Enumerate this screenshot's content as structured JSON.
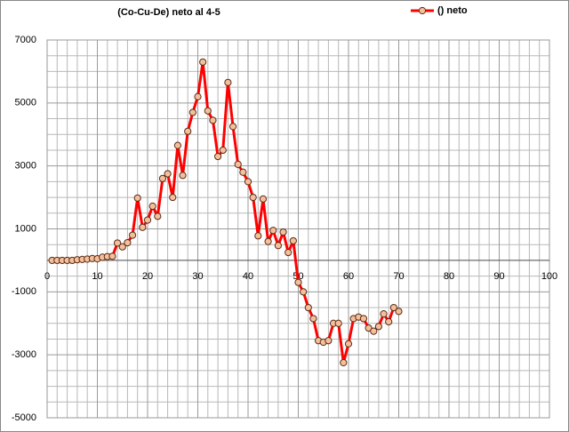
{
  "chart_data": {
    "type": "line",
    "title": "(Co-Cu-De) neto al 4-5",
    "x": [
      1,
      2,
      3,
      4,
      5,
      6,
      7,
      8,
      9,
      10,
      11,
      12,
      13,
      14,
      15,
      16,
      17,
      18,
      19,
      20,
      21,
      22,
      23,
      24,
      25,
      26,
      27,
      28,
      29,
      30,
      31,
      32,
      33,
      34,
      35,
      36,
      37,
      38,
      39,
      40,
      41,
      42,
      43,
      44,
      45,
      46,
      47,
      48,
      49,
      50,
      51,
      52,
      53,
      54,
      55,
      56,
      57,
      58,
      59,
      60,
      61,
      62,
      63,
      64,
      65,
      66,
      67,
      68,
      69,
      70
    ],
    "series": [
      {
        "name": "() neto",
        "color": "#ff0000",
        "marker_color": "#f4c09a",
        "values": [
          0,
          0,
          0,
          0,
          0,
          20,
          30,
          40,
          60,
          50,
          100,
          120,
          130,
          550,
          430,
          560,
          800,
          1980,
          1050,
          1280,
          1720,
          1400,
          2600,
          2750,
          2000,
          3650,
          2700,
          4100,
          4700,
          5200,
          6300,
          4750,
          4450,
          3300,
          3500,
          5650,
          4250,
          3050,
          2800,
          2500,
          2000,
          780,
          1950,
          600,
          950,
          470,
          900,
          250,
          620,
          -700,
          -1000,
          -1500,
          -1850,
          -2550,
          -2600,
          -2550,
          -2000,
          -2000,
          -3250,
          -2650,
          -1850,
          -1800,
          -1850,
          -2150,
          -2250,
          -2100,
          -1700,
          -1950,
          -1500,
          -1620
        ]
      }
    ],
    "xlim": [
      0,
      100
    ],
    "xticks": [
      0,
      10,
      20,
      30,
      40,
      50,
      60,
      70,
      80,
      90,
      100
    ],
    "ylim": [
      -5000,
      7000
    ],
    "yticks": [
      -5000,
      -3000,
      -1000,
      1000,
      3000,
      5000,
      7000
    ],
    "grid": true,
    "legend": "top-right"
  }
}
